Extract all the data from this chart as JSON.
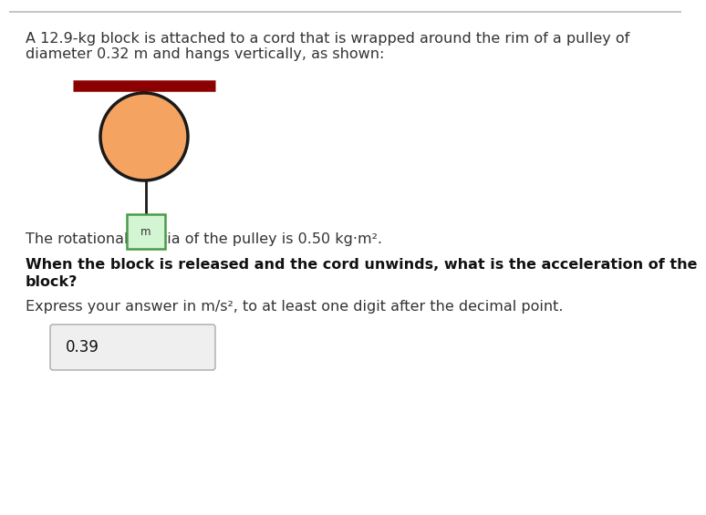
{
  "background_color": "#ffffff",
  "border_color": "#bbbbbb",
  "title_text_line1": "A 12.9-kg block is attached to a cord that is wrapped around the rim of a pulley of",
  "title_text_line2": "diameter 0.32 m and hangs vertically, as shown:",
  "inertia_text": "The rotational inertia of the pulley is 0.50 kg·m².",
  "question_text_line1": "When the block is released and the cord unwinds, what is the acceleration of the",
  "question_text_line2": "block?",
  "express_text": "Express your answer in m/s², to at least one digit after the decimal point.",
  "answer": "0.39",
  "pulley_color": "#f4a460",
  "pulley_edge_color": "#1a1a1a",
  "axle_color": "#8b0000",
  "block_fill": "#d4f5d4",
  "block_edge": "#4a9a4a",
  "block_label": "m",
  "cord_color": "#1a1a1a",
  "answer_box_fill": "#efefef",
  "answer_box_edge": "#aaaaaa",
  "text_color": "#333333",
  "text_color_blue": "#2255aa",
  "text_color_bold": "#111111"
}
